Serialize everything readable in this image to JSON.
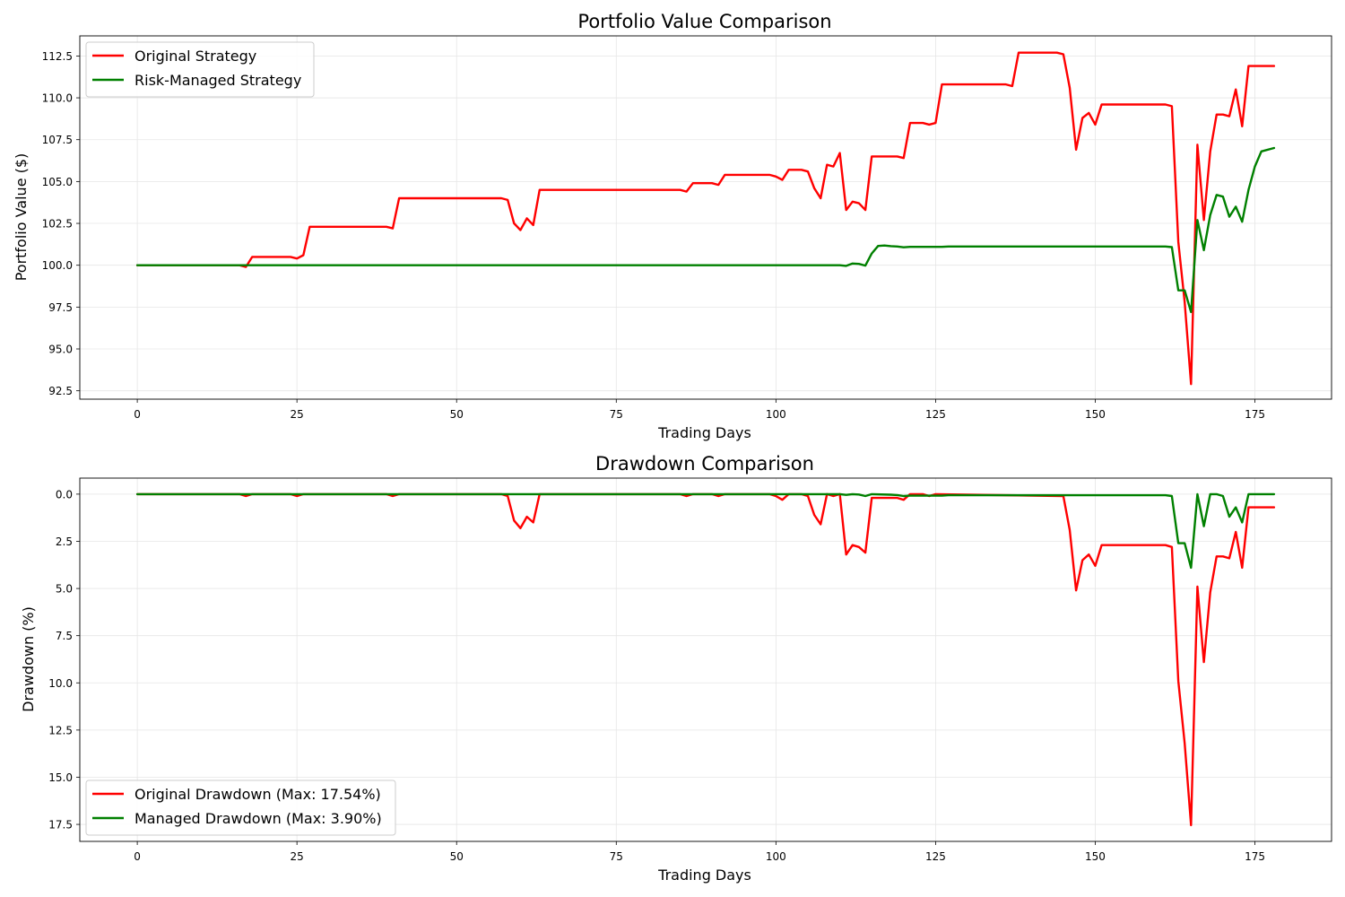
{
  "chart_data": [
    {
      "type": "line",
      "title": "Portfolio Value Comparison",
      "xlabel": "Trading Days",
      "ylabel": "Portfolio Value ($)",
      "xlim": [
        -9,
        187
      ],
      "ylim": [
        92,
        113.7
      ],
      "xticks": [
        0,
        25,
        50,
        75,
        100,
        125,
        150,
        175
      ],
      "yticks": [
        92.5,
        95.0,
        97.5,
        100.0,
        102.5,
        105.0,
        107.5,
        110.0,
        112.5
      ],
      "inverted_y": false,
      "grid": true,
      "legend_position": "top-left",
      "colors": {
        "original": "#ff0000",
        "managed": "#008000"
      },
      "series": [
        {
          "name": "Original Strategy",
          "color": "#ff0000",
          "points": [
            [
              0,
              100.0
            ],
            [
              16,
              100.0
            ],
            [
              17,
              99.9
            ],
            [
              18,
              100.5
            ],
            [
              24,
              100.5
            ],
            [
              25,
              100.4
            ],
            [
              26,
              100.6
            ],
            [
              27,
              102.3
            ],
            [
              39,
              102.3
            ],
            [
              40,
              102.2
            ],
            [
              41,
              104.0
            ],
            [
              57,
              104.0
            ],
            [
              58,
              103.9
            ],
            [
              59,
              102.5
            ],
            [
              60,
              102.1
            ],
            [
              61,
              102.8
            ],
            [
              62,
              102.4
            ],
            [
              63,
              104.5
            ],
            [
              85,
              104.5
            ],
            [
              86,
              104.4
            ],
            [
              87,
              104.9
            ],
            [
              90,
              104.9
            ],
            [
              91,
              104.8
            ],
            [
              92,
              105.4
            ],
            [
              99,
              105.4
            ],
            [
              100,
              105.3
            ],
            [
              101,
              105.1
            ],
            [
              102,
              105.7
            ],
            [
              104,
              105.7
            ],
            [
              105,
              105.6
            ],
            [
              106,
              104.6
            ],
            [
              107,
              104.0
            ],
            [
              108,
              106.0
            ],
            [
              109,
              105.9
            ],
            [
              110,
              106.7
            ],
            [
              111,
              103.3
            ],
            [
              112,
              103.8
            ],
            [
              113,
              103.7
            ],
            [
              114,
              103.3
            ],
            [
              115,
              106.5
            ],
            [
              119,
              106.5
            ],
            [
              120,
              106.4
            ],
            [
              121,
              108.5
            ],
            [
              123,
              108.5
            ],
            [
              124,
              108.4
            ],
            [
              125,
              108.5
            ],
            [
              126,
              110.8
            ],
            [
              136,
              110.8
            ],
            [
              137,
              110.7
            ],
            [
              138,
              112.7
            ],
            [
              144,
              112.7
            ],
            [
              145,
              112.6
            ],
            [
              146,
              110.6
            ],
            [
              147,
              106.9
            ],
            [
              148,
              108.8
            ],
            [
              149,
              109.1
            ],
            [
              150,
              108.4
            ],
            [
              151,
              109.6
            ],
            [
              161,
              109.6
            ],
            [
              162,
              109.5
            ],
            [
              163,
              101.4
            ],
            [
              164,
              97.8
            ],
            [
              165,
              92.9
            ],
            [
              166,
              107.2
            ],
            [
              167,
              102.7
            ],
            [
              168,
              106.8
            ],
            [
              169,
              109.0
            ],
            [
              170,
              109.0
            ],
            [
              171,
              108.9
            ],
            [
              172,
              110.5
            ],
            [
              173,
              108.3
            ],
            [
              174,
              111.9
            ],
            [
              178,
              111.9
            ]
          ]
        },
        {
          "name": "Risk-Managed Strategy",
          "color": "#008000",
          "points": [
            [
              0,
              100.0
            ],
            [
              110,
              100.0
            ],
            [
              111,
              99.96
            ],
            [
              112,
              100.1
            ],
            [
              113,
              100.08
            ],
            [
              114,
              99.98
            ],
            [
              115,
              100.7
            ],
            [
              116,
              101.15
            ],
            [
              117,
              101.18
            ],
            [
              118,
              101.14
            ],
            [
              119,
              101.12
            ],
            [
              120,
              101.07
            ],
            [
              121,
              101.1
            ],
            [
              126,
              101.1
            ],
            [
              127,
              101.12
            ],
            [
              161,
              101.12
            ],
            [
              162,
              101.08
            ],
            [
              163,
              98.5
            ],
            [
              164,
              98.5
            ],
            [
              165,
              97.2
            ],
            [
              166,
              102.7
            ],
            [
              167,
              100.9
            ],
            [
              168,
              103.0
            ],
            [
              169,
              104.2
            ],
            [
              170,
              104.1
            ],
            [
              171,
              102.9
            ],
            [
              172,
              103.5
            ],
            [
              173,
              102.6
            ],
            [
              174,
              104.5
            ],
            [
              175,
              105.9
            ],
            [
              176,
              106.8
            ],
            [
              178,
              107.0
            ]
          ]
        }
      ]
    },
    {
      "type": "line",
      "title": "Drawdown Comparison",
      "xlabel": "Trading Days",
      "ylabel": "Drawdown (%)",
      "xlim": [
        -9,
        187
      ],
      "ylim": [
        -0.85,
        18.4
      ],
      "xticks": [
        0,
        25,
        50,
        75,
        100,
        125,
        150,
        175
      ],
      "yticks": [
        0.0,
        2.5,
        5.0,
        7.5,
        10.0,
        12.5,
        15.0,
        17.5
      ],
      "inverted_y": true,
      "grid": true,
      "legend_position": "bottom-left",
      "colors": {
        "original": "#ff0000",
        "managed": "#008000"
      },
      "series": [
        {
          "name": "Original Drawdown (Max: 17.54%)",
          "color": "#ff0000",
          "points": [
            [
              0,
              0
            ],
            [
              16,
              0
            ],
            [
              17,
              0.1
            ],
            [
              18,
              0
            ],
            [
              24,
              0
            ],
            [
              25,
              0.1
            ],
            [
              26,
              0
            ],
            [
              39,
              0
            ],
            [
              40,
              0.1
            ],
            [
              41,
              0
            ],
            [
              57,
              0
            ],
            [
              58,
              0.1
            ],
            [
              59,
              1.4
            ],
            [
              60,
              1.8
            ],
            [
              61,
              1.2
            ],
            [
              62,
              1.5
            ],
            [
              63,
              0
            ],
            [
              85,
              0
            ],
            [
              86,
              0.1
            ],
            [
              87,
              0
            ],
            [
              90,
              0
            ],
            [
              91,
              0.1
            ],
            [
              92,
              0
            ],
            [
              99,
              0
            ],
            [
              100,
              0.1
            ],
            [
              101,
              0.3
            ],
            [
              102,
              0
            ],
            [
              104,
              0
            ],
            [
              105,
              0.1
            ],
            [
              106,
              1.1
            ],
            [
              107,
              1.6
            ],
            [
              108,
              0
            ],
            [
              109,
              0.1
            ],
            [
              110,
              0
            ],
            [
              111,
              3.2
            ],
            [
              112,
              2.7
            ],
            [
              113,
              2.8
            ],
            [
              114,
              3.1
            ],
            [
              115,
              0.2
            ],
            [
              119,
              0.2
            ],
            [
              120,
              0.3
            ],
            [
              121,
              0
            ],
            [
              123,
              0
            ],
            [
              124,
              0.1
            ],
            [
              125,
              0
            ],
            [
              145,
              0.1
            ],
            [
              146,
              1.9
            ],
            [
              147,
              5.1
            ],
            [
              148,
              3.5
            ],
            [
              149,
              3.2
            ],
            [
              150,
              3.8
            ],
            [
              151,
              2.7
            ],
            [
              161,
              2.7
            ],
            [
              162,
              2.8
            ],
            [
              163,
              9.9
            ],
            [
              164,
              13.2
            ],
            [
              165,
              17.54
            ],
            [
              166,
              4.9
            ],
            [
              167,
              8.9
            ],
            [
              168,
              5.2
            ],
            [
              169,
              3.3
            ],
            [
              170,
              3.3
            ],
            [
              171,
              3.4
            ],
            [
              172,
              2.0
            ],
            [
              173,
              3.9
            ],
            [
              174,
              0.7
            ],
            [
              178,
              0.7
            ]
          ]
        },
        {
          "name": "Managed Drawdown (Max: 3.90%)",
          "color": "#008000",
          "points": [
            [
              0,
              0
            ],
            [
              110,
              0
            ],
            [
              111,
              0.04
            ],
            [
              112,
              0
            ],
            [
              113,
              0.02
            ],
            [
              114,
              0.1
            ],
            [
              115,
              0
            ],
            [
              118,
              0.03
            ],
            [
              119,
              0.05
            ],
            [
              120,
              0.1
            ],
            [
              121,
              0.08
            ],
            [
              126,
              0.08
            ],
            [
              127,
              0.06
            ],
            [
              161,
              0.06
            ],
            [
              162,
              0.1
            ],
            [
              163,
              2.6
            ],
            [
              164,
              2.6
            ],
            [
              165,
              3.9
            ],
            [
              166,
              0
            ],
            [
              167,
              1.7
            ],
            [
              168,
              0
            ],
            [
              169,
              0
            ],
            [
              170,
              0.1
            ],
            [
              171,
              1.2
            ],
            [
              172,
              0.7
            ],
            [
              173,
              1.5
            ],
            [
              174,
              0
            ],
            [
              178,
              0
            ]
          ]
        }
      ]
    }
  ]
}
